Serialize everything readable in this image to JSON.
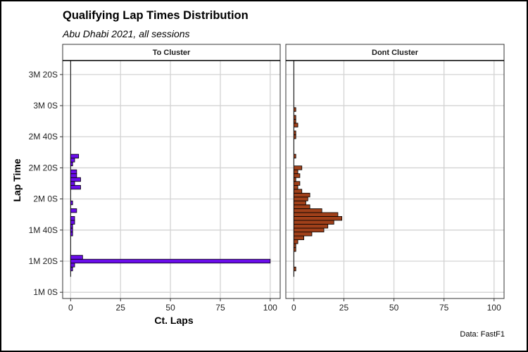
{
  "chart_data": {
    "type": "bar",
    "orientation": "horizontal",
    "title": "Qualifying Lap Times Distribution",
    "subtitle": "Abu Dhabi 2021, all sessions",
    "xlabel": "Ct. Laps",
    "ylabel": "Lap Time",
    "caption": "Data: FastF1",
    "x_ticks": [
      "0",
      "25",
      "50",
      "75",
      "100"
    ],
    "x_tick_values": [
      0,
      25,
      50,
      75,
      100
    ],
    "xlim": [
      -4,
      105
    ],
    "y_ticks": [
      "1M 0S",
      "1M 20S",
      "1M 40S",
      "2M 0S",
      "2M 20S",
      "2M 40S",
      "3M 0S",
      "3M 20S"
    ],
    "y_tick_values": [
      60,
      80,
      100,
      120,
      140,
      160,
      180,
      200
    ],
    "ylim": [
      56,
      209
    ],
    "bin_width_seconds": 2.5,
    "grid": true,
    "panels": [
      {
        "name": "To Cluster",
        "fill": "#6a0dea",
        "bins": [
          {
            "y": 75,
            "count": 1
          },
          {
            "y": 77.5,
            "count": 2
          },
          {
            "y": 80,
            "count": 100
          },
          {
            "y": 82.5,
            "count": 6
          },
          {
            "y": 97.5,
            "count": 1
          },
          {
            "y": 100,
            "count": 1
          },
          {
            "y": 102.5,
            "count": 1
          },
          {
            "y": 105,
            "count": 2
          },
          {
            "y": 107.5,
            "count": 2
          },
          {
            "y": 112.5,
            "count": 3
          },
          {
            "y": 117.5,
            "count": 1
          },
          {
            "y": 127.5,
            "count": 5
          },
          {
            "y": 130,
            "count": 2
          },
          {
            "y": 132.5,
            "count": 5
          },
          {
            "y": 135,
            "count": 3
          },
          {
            "y": 137.5,
            "count": 3
          },
          {
            "y": 142.5,
            "count": 1
          },
          {
            "y": 145,
            "count": 2
          },
          {
            "y": 147.5,
            "count": 4
          }
        ]
      },
      {
        "name": "Dont Cluster",
        "fill": "#a0401a",
        "bins": [
          {
            "y": 75,
            "count": 1
          },
          {
            "y": 87.5,
            "count": 1
          },
          {
            "y": 90,
            "count": 1
          },
          {
            "y": 92.5,
            "count": 2
          },
          {
            "y": 95,
            "count": 5
          },
          {
            "y": 97.5,
            "count": 9
          },
          {
            "y": 100,
            "count": 15
          },
          {
            "y": 102.5,
            "count": 17
          },
          {
            "y": 105,
            "count": 20
          },
          {
            "y": 107.5,
            "count": 24
          },
          {
            "y": 110,
            "count": 22
          },
          {
            "y": 112.5,
            "count": 14
          },
          {
            "y": 115,
            "count": 8
          },
          {
            "y": 117.5,
            "count": 6
          },
          {
            "y": 120,
            "count": 7
          },
          {
            "y": 122.5,
            "count": 8
          },
          {
            "y": 125,
            "count": 4
          },
          {
            "y": 127.5,
            "count": 2
          },
          {
            "y": 130,
            "count": 3
          },
          {
            "y": 132.5,
            "count": 1
          },
          {
            "y": 135,
            "count": 3
          },
          {
            "y": 137.5,
            "count": 2
          },
          {
            "y": 140,
            "count": 4
          },
          {
            "y": 147.5,
            "count": 1
          },
          {
            "y": 160,
            "count": 1
          },
          {
            "y": 162.5,
            "count": 1
          },
          {
            "y": 167.5,
            "count": 2
          },
          {
            "y": 170,
            "count": 1
          },
          {
            "y": 172.5,
            "count": 1
          },
          {
            "y": 177.5,
            "count": 1
          }
        ]
      }
    ]
  }
}
